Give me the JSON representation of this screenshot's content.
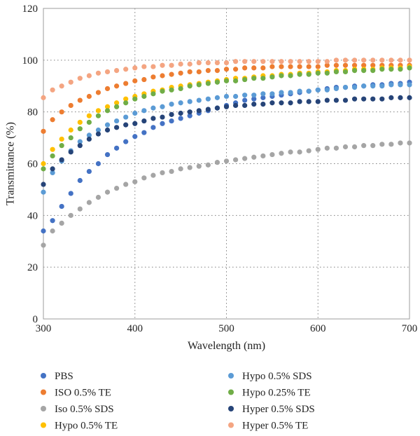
{
  "chart_data": {
    "type": "scatter",
    "xlabel": "Wavelength (nm)",
    "ylabel": "Transmittance (%)",
    "xlim": [
      300,
      700
    ],
    "ylim": [
      0,
      120
    ],
    "xticks": [
      300,
      400,
      500,
      600,
      700
    ],
    "yticks": [
      0,
      20,
      40,
      60,
      80,
      100,
      120
    ],
    "grid": "dotted",
    "legend_position": "bottom",
    "x": [
      300,
      310,
      320,
      330,
      340,
      350,
      360,
      370,
      380,
      390,
      400,
      410,
      420,
      430,
      440,
      450,
      460,
      470,
      480,
      490,
      500,
      510,
      520,
      530,
      540,
      550,
      560,
      570,
      580,
      590,
      600,
      610,
      620,
      630,
      640,
      650,
      660,
      670,
      680,
      690,
      700
    ],
    "series": [
      {
        "name": "PBS",
        "color": "#4472C4",
        "values": [
          34,
          38,
          43.5,
          48.5,
          53.5,
          57,
          60,
          63.5,
          66,
          68.5,
          70.5,
          72,
          74,
          75.5,
          76.5,
          77.5,
          78.5,
          79.5,
          80.5,
          81.5,
          82.5,
          83.5,
          84.5,
          85,
          85.5,
          86,
          86.5,
          87,
          87.5,
          88,
          88.5,
          89,
          89.5,
          89.5,
          90,
          90,
          90.5,
          90.5,
          91,
          91,
          91.5
        ]
      },
      {
        "name": "ISO 0.5% TE",
        "color": "#ED7D31",
        "values": [
          72.5,
          77,
          80,
          82.5,
          84.5,
          86,
          87.5,
          89,
          90,
          91,
          92,
          92.5,
          93.5,
          94,
          94.5,
          95,
          95.5,
          95.5,
          96,
          96,
          96.5,
          96.5,
          97,
          97,
          97,
          97.5,
          97.5,
          97.5,
          97.5,
          97.5,
          97.5,
          98,
          98,
          98,
          98,
          98,
          98,
          98,
          98,
          98,
          98
        ]
      },
      {
        "name": "Iso 0.5% SDS",
        "color": "#A5A5A5",
        "values": [
          28.5,
          34,
          37,
          40,
          42.5,
          45,
          47,
          49,
          50.5,
          52,
          53,
          54.5,
          55.5,
          56.5,
          57,
          58,
          58.5,
          59,
          59.5,
          60.5,
          61,
          61.5,
          62,
          62.5,
          63,
          63.5,
          64,
          64.5,
          64.5,
          65,
          65.5,
          66,
          66,
          66.5,
          66.5,
          67,
          67,
          67.5,
          67.5,
          68,
          68
        ]
      },
      {
        "name": "Hypo 0.5% TE",
        "color": "#FFC000",
        "values": [
          60,
          65.5,
          69.5,
          73,
          76,
          78.5,
          80.5,
          82,
          83.5,
          85,
          86,
          87,
          88,
          88.5,
          89.5,
          90,
          90.5,
          91,
          91.5,
          92,
          92.5,
          93,
          93,
          93.5,
          94,
          94,
          94.5,
          94.5,
          95,
          95,
          95.5,
          95.5,
          96,
          96,
          96.5,
          96.5,
          96.5,
          97,
          97,
          97,
          97.5
        ]
      },
      {
        "name": "Hypo 0.5% SDS",
        "color": "#5B9BD5",
        "values": [
          49,
          56.5,
          61,
          65,
          68.5,
          71,
          73,
          75,
          76.5,
          78,
          79.5,
          80.5,
          81.5,
          82,
          83,
          83.5,
          84,
          84.5,
          85,
          85.5,
          86,
          86,
          86.5,
          86.5,
          87,
          87,
          87.5,
          87.5,
          88,
          88,
          88.5,
          88.5,
          89,
          89.5,
          89.5,
          90,
          90,
          90,
          90.5,
          90.5,
          90.5
        ]
      },
      {
        "name": "Hypo 0.25% TE",
        "color": "#70AD47",
        "values": [
          58,
          63,
          67,
          70,
          73.5,
          76,
          78.5,
          80.5,
          82,
          83.5,
          85,
          86,
          87,
          88,
          88.5,
          89,
          90,
          90.5,
          91,
          91.5,
          92,
          92,
          92.5,
          93,
          93,
          93.5,
          94,
          94,
          94.5,
          94.5,
          95,
          95,
          95.5,
          95.5,
          96,
          96,
          96,
          96.5,
          96.5,
          96.5,
          97
        ]
      },
      {
        "name": "Hyper 0.5% SDS",
        "color": "#264478",
        "values": [
          52,
          58,
          61.5,
          64.5,
          67,
          69.5,
          71.5,
          73,
          74,
          75,
          75.5,
          76.5,
          77.5,
          78,
          79,
          79.5,
          80,
          80.5,
          81,
          81.5,
          82,
          82.5,
          82.5,
          83,
          83,
          83.5,
          83.5,
          83.5,
          84,
          84,
          84,
          84.5,
          84.5,
          84.5,
          85,
          85,
          85,
          85,
          85.5,
          85.5,
          85.5
        ]
      },
      {
        "name": "Hyper 0.5% TE",
        "color": "#F4A582",
        "values": [
          85.5,
          88.5,
          90,
          91.5,
          93,
          94,
          95,
          95.5,
          96,
          96.5,
          97,
          97.5,
          97.5,
          98,
          98,
          98.5,
          98.5,
          99,
          99,
          99,
          99,
          99.5,
          99.5,
          99.5,
          99.5,
          99.5,
          99.5,
          99.5,
          99.5,
          99.5,
          99.5,
          99.5,
          100,
          100,
          100,
          100,
          100,
          100,
          100,
          100,
          100
        ]
      }
    ]
  }
}
